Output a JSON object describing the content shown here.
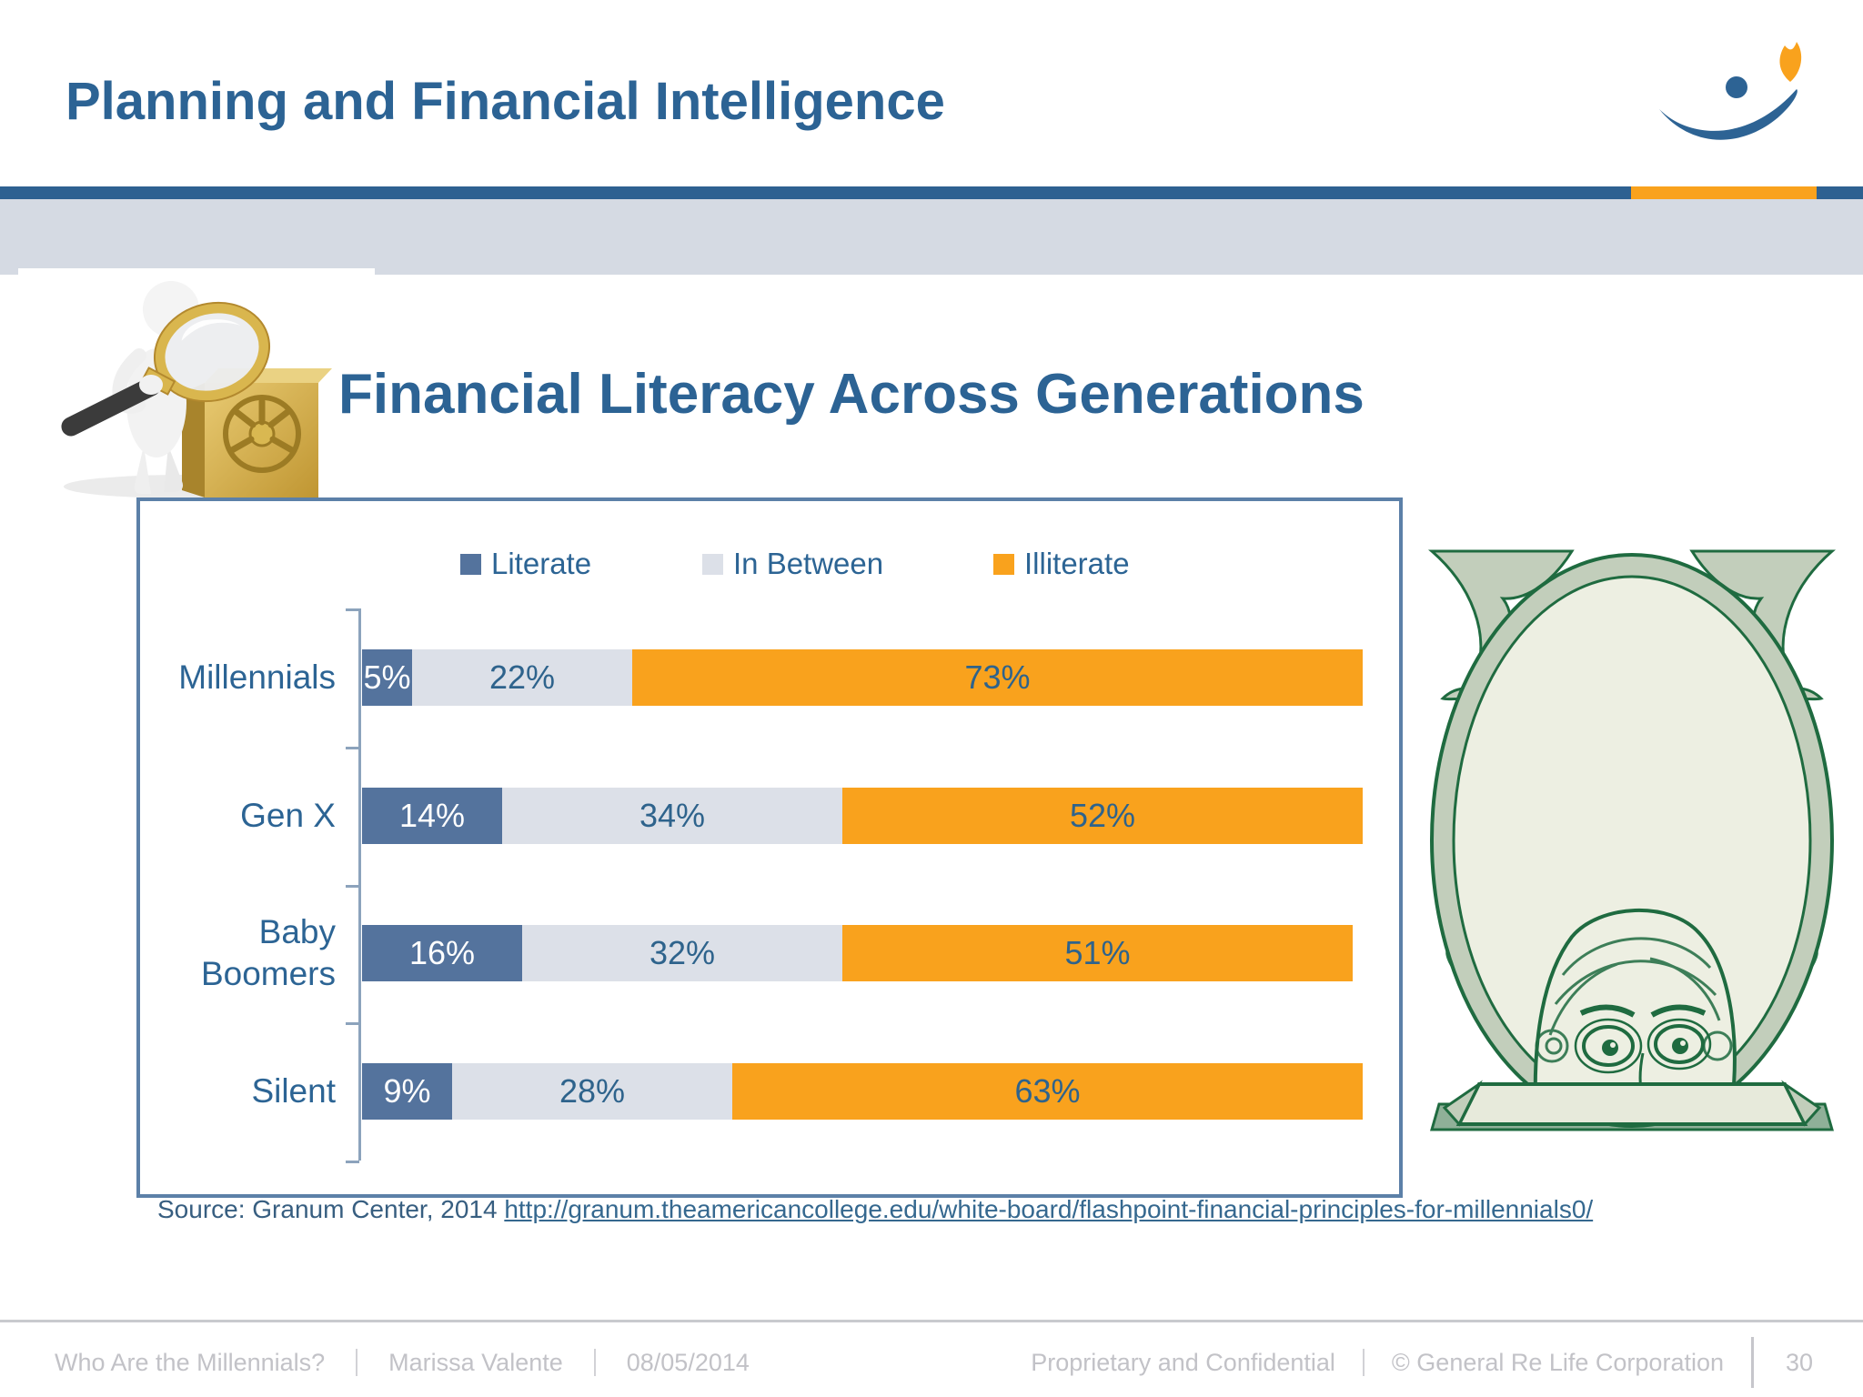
{
  "header": {
    "title": "Planning and Financial Intelligence"
  },
  "slide": {
    "title": "Financial Literacy Across Generations",
    "source_prefix": "Source: Granum Center, 2014 ",
    "source_link": "http://granum.theamericancollege.edu/white-board/flashpoint-financial-principles-for-millennials0/"
  },
  "chart_data": {
    "type": "bar",
    "orientation": "horizontal",
    "stacked": true,
    "categories": [
      "Millennials",
      "Gen X",
      "Baby Boomers",
      "Silent"
    ],
    "series": [
      {
        "name": "Literate",
        "color": "#54739D",
        "values": [
          5,
          14,
          16,
          9
        ]
      },
      {
        "name": "In Between",
        "color": "#DCE0E8",
        "values": [
          22,
          34,
          32,
          28
        ]
      },
      {
        "name": "Illiterate",
        "color": "#F9A21D",
        "values": [
          73,
          52,
          51,
          63
        ]
      }
    ],
    "value_suffix": "%",
    "xlim": [
      0,
      100
    ],
    "grid": false,
    "legend_position": "top",
    "data_labels": true,
    "label_color_on_blue": "#FFFFFF",
    "label_color": "#2E638C"
  },
  "icons": {
    "logo": "company-logo-swoosh-flame",
    "illustration_left": "figure-with-magnifier-and-gold-safe",
    "illustration_right": "dollar-bill-portrait-frame"
  },
  "colors": {
    "title_blue": "#2C6394",
    "divider_blue": "#2E6191",
    "divider_orange": "#F9A21D",
    "band_gray": "#D5DAE3",
    "chart_border": "#5C80A8",
    "footer_gray": "#C2C2C7"
  },
  "footer": {
    "left": [
      "Who Are the Millennials?",
      "Marissa Valente",
      "08/05/2014"
    ],
    "right": [
      "Proprietary and Confidential",
      "© General Re Life Corporation"
    ],
    "page_number": "30"
  }
}
